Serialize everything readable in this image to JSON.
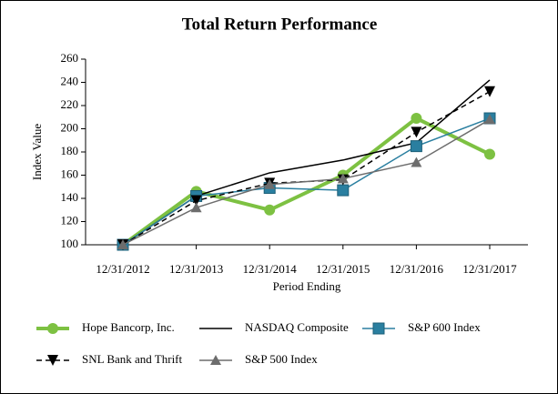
{
  "chart_data": {
    "type": "line",
    "title": "Total Return Performance",
    "x_label": "Period Ending",
    "y_label": "Index Value",
    "categories": [
      "12/31/2012",
      "12/31/2013",
      "12/31/2014",
      "12/31/2015",
      "12/31/2016",
      "12/31/2017"
    ],
    "ylim": [
      100,
      260
    ],
    "yticks": [
      100,
      120,
      140,
      160,
      180,
      200,
      220,
      240,
      260
    ],
    "series": [
      {
        "name": "Hope Bancorp, Inc.",
        "color": "#7dc142",
        "width": 4,
        "marker": "circle",
        "dash": "solid",
        "values": [
          100,
          146,
          130,
          160,
          209,
          178
        ]
      },
      {
        "name": "NASDAQ Composite",
        "color": "#000000",
        "width": 1.5,
        "marker": "none",
        "dash": "solid",
        "values": [
          100,
          142,
          162,
          173,
          188,
          242
        ]
      },
      {
        "name": "S&P 600 Index",
        "color": "#2a7fa0",
        "width": 1.5,
        "marker": "square",
        "dash": "solid",
        "values": [
          100,
          142,
          149,
          147,
          185,
          209
        ]
      },
      {
        "name": "SNL Bank and Thrift",
        "color": "#000000",
        "width": 1.5,
        "marker": "triangle-down",
        "dash": "dashed",
        "values": [
          100,
          138,
          153,
          156,
          197,
          232
        ]
      },
      {
        "name": "S&P 500 Index",
        "color": "#6d6d6d",
        "width": 1.5,
        "marker": "triangle-up",
        "dash": "solid",
        "values": [
          100,
          132,
          152,
          157,
          171,
          208
        ]
      }
    ]
  }
}
